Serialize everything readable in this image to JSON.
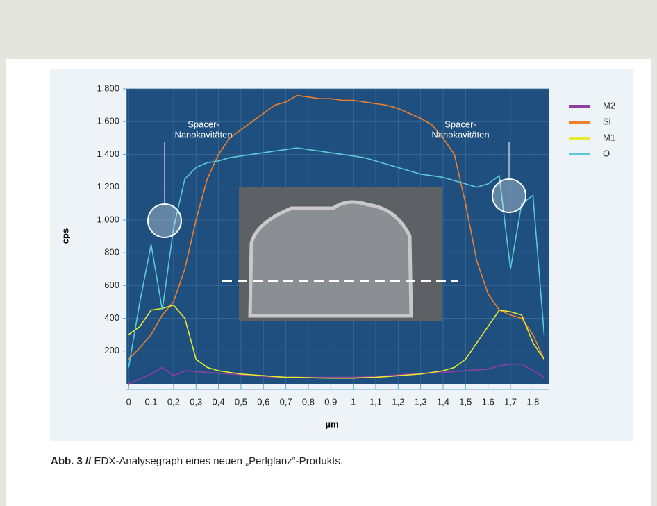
{
  "chart_data": {
    "type": "line",
    "xlabel": "µm",
    "ylabel": "cps",
    "x": [
      0,
      0.05,
      0.1,
      0.15,
      0.2,
      0.25,
      0.3,
      0.35,
      0.4,
      0.45,
      0.5,
      0.55,
      0.6,
      0.65,
      0.7,
      0.75,
      0.8,
      0.85,
      0.9,
      0.95,
      1,
      1.05,
      1.1,
      1.15,
      1.2,
      1.25,
      1.3,
      1.35,
      1.4,
      1.45,
      1.5,
      1.55,
      1.6,
      1.65,
      1.7,
      1.75,
      1.8,
      1.85
    ],
    "xlim": [
      -0.01,
      1.87
    ],
    "xticks": [
      0,
      {
        "value": 0.1,
        "label": "0,1"
      },
      {
        "value": 0.2,
        "label": "0,2"
      },
      {
        "value": 0.3,
        "label": "0,3"
      },
      {
        "value": 0.4,
        "label": "0,4"
      },
      {
        "value": 0.5,
        "label": "0,5"
      },
      {
        "value": 0.6,
        "label": "0,6"
      },
      {
        "value": 0.7,
        "label": "0,7"
      },
      {
        "value": 0.8,
        "label": "0,8"
      },
      {
        "value": 0.9,
        "label": "0,9"
      },
      1,
      {
        "value": 1.1,
        "label": "1,1"
      },
      {
        "value": 1.2,
        "label": "1,2"
      },
      {
        "value": 1.3,
        "label": "1,3"
      },
      {
        "value": 1.4,
        "label": "1,4"
      },
      {
        "value": 1.5,
        "label": "1,5"
      },
      {
        "value": 1.6,
        "label": "1,6"
      },
      {
        "value": 1.7,
        "label": "1,7"
      },
      {
        "value": 1.8,
        "label": "1,8"
      }
    ],
    "ylim": [
      0,
      1800
    ],
    "yticks": [
      200,
      400,
      600,
      800,
      {
        "value": 1000,
        "label": "1.000"
      },
      {
        "value": 1200,
        "label": "1.200"
      },
      {
        "value": 1400,
        "label": "1.400"
      },
      {
        "value": 1600,
        "label": "1.600"
      },
      {
        "value": 1800,
        "label": "1.800"
      }
    ],
    "grid": true,
    "legend": "right",
    "series": [
      {
        "name": "M2",
        "color": "#8e3fa3",
        "values": [
          0,
          30,
          60,
          100,
          50,
          80,
          75,
          70,
          65,
          60,
          55,
          50,
          45,
          42,
          40,
          40,
          40,
          40,
          40,
          40,
          40,
          42,
          45,
          50,
          55,
          60,
          65,
          65,
          70,
          75,
          80,
          85,
          90,
          110,
          120,
          120,
          80,
          40
        ]
      },
      {
        "name": "Si",
        "color": "#f07f2a",
        "values": [
          150,
          220,
          300,
          420,
          500,
          700,
          1000,
          1250,
          1400,
          1500,
          1550,
          1600,
          1650,
          1700,
          1720,
          1760,
          1750,
          1740,
          1740,
          1730,
          1730,
          1720,
          1710,
          1700,
          1680,
          1650,
          1620,
          1580,
          1500,
          1400,
          1100,
          750,
          550,
          450,
          420,
          400,
          300,
          150
        ]
      },
      {
        "name": "M1",
        "color": "#e6e832",
        "values": [
          300,
          350,
          450,
          460,
          480,
          400,
          150,
          100,
          80,
          70,
          60,
          55,
          50,
          45,
          40,
          40,
          38,
          36,
          35,
          35,
          35,
          38,
          40,
          45,
          50,
          55,
          60,
          70,
          80,
          100,
          150,
          250,
          350,
          450,
          440,
          420,
          250,
          150
        ]
      },
      {
        "name": "O",
        "color": "#5cc9d9",
        "values": [
          100,
          500,
          850,
          450,
          950,
          1250,
          1320,
          1350,
          1360,
          1380,
          1390,
          1400,
          1410,
          1420,
          1430,
          1440,
          1430,
          1420,
          1410,
          1400,
          1390,
          1380,
          1360,
          1340,
          1320,
          1300,
          1280,
          1270,
          1260,
          1240,
          1220,
          1200,
          1220,
          1270,
          700,
          1100,
          1150,
          300
        ]
      }
    ],
    "annotations": [
      {
        "lines": [
          "Spacer-",
          "Nanokavitäten"
        ]
      },
      {
        "lines": [
          "Spacer-",
          "Nanokavitäten"
        ]
      }
    ]
  },
  "caption": {
    "label": "Abb. 3 //",
    "text": "EDX-Analysegraph eines neuen „Perlglanz“-Produkts."
  }
}
